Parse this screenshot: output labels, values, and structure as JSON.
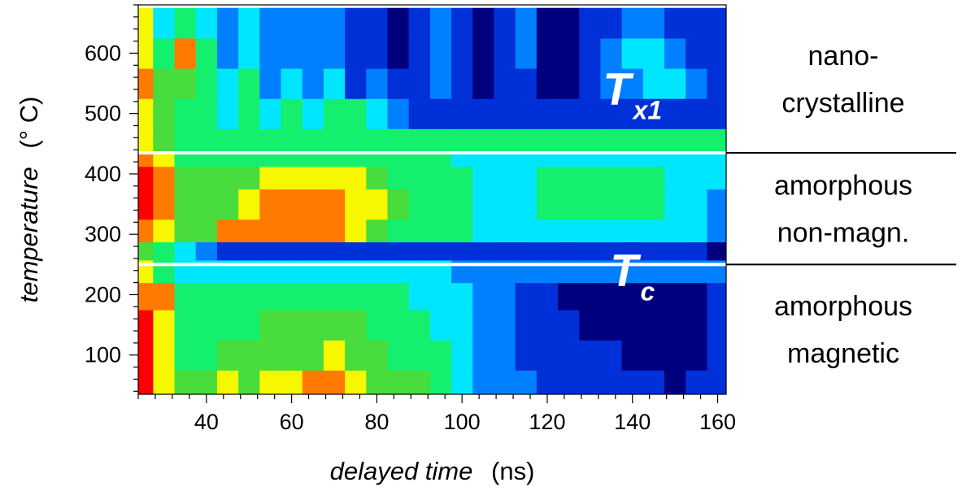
{
  "colors": {
    "background": "#ffffff",
    "phase_line": "#ffffff",
    "colormap": [
      "#00007f",
      "#0030d8",
      "#0080ff",
      "#00e6ff",
      "#14f06e",
      "#48dc3c",
      "#f7f700",
      "#ff7a00",
      "#ff0000"
    ]
  },
  "chart_data": {
    "type": "heatmap",
    "title": "",
    "xlabel": "delayed time",
    "xlabel_unit": "(ns)",
    "ylabel": "temperature",
    "ylabel_unit": "(° C)",
    "xlim": [
      24,
      162
    ],
    "ylim": [
      35,
      680
    ],
    "x_ticks": [
      40,
      60,
      80,
      100,
      120,
      140,
      160
    ],
    "y_ticks": [
      100,
      200,
      300,
      400,
      500,
      600
    ],
    "grid": false,
    "phase_boundaries": [
      {
        "name": "Tx1",
        "temperature": 435
      },
      {
        "name": "Tc",
        "temperature": 250
      }
    ],
    "annotations": [
      {
        "main": "T",
        "sub": "x1",
        "x": 140,
        "y": 515
      },
      {
        "main": "T",
        "sub": "c",
        "x": 140,
        "y": 215
      }
    ],
    "regions": [
      {
        "lines": [
          "nano-",
          "crystalline"
        ],
        "y_range": [
          435,
          680
        ]
      },
      {
        "lines": [
          "amorphous",
          "non-magn."
        ],
        "y_range": [
          250,
          435
        ]
      },
      {
        "lines": [
          "amorphous",
          "magnetic"
        ],
        "y_range": [
          35,
          250
        ]
      }
    ],
    "x": [
      25,
      30,
      35,
      40,
      45,
      50,
      55,
      60,
      65,
      70,
      75,
      80,
      85,
      90,
      95,
      100,
      105,
      110,
      115,
      120,
      125,
      130,
      135,
      140,
      145,
      150,
      155,
      160
    ],
    "y": [
      50,
      100,
      150,
      200,
      240,
      275,
      300,
      350,
      400,
      425,
      450,
      500,
      550,
      600,
      650
    ],
    "z": [
      [
        8,
        6,
        5,
        5,
        6,
        5,
        6,
        6,
        7,
        7,
        6,
        5,
        5,
        5,
        4,
        3,
        2,
        2,
        2,
        1,
        1,
        1,
        1,
        1,
        1,
        0,
        1,
        1
      ],
      [
        8,
        6,
        4,
        4,
        5,
        5,
        5,
        5,
        5,
        6,
        5,
        5,
        4,
        4,
        4,
        3,
        2,
        2,
        1,
        1,
        1,
        1,
        1,
        0,
        0,
        0,
        0,
        1
      ],
      [
        8,
        6,
        4,
        4,
        4,
        4,
        5,
        5,
        5,
        5,
        5,
        4,
        4,
        4,
        3,
        3,
        2,
        2,
        1,
        1,
        1,
        0,
        0,
        0,
        0,
        0,
        0,
        1
      ],
      [
        7,
        7,
        4,
        4,
        4,
        4,
        4,
        4,
        4,
        4,
        4,
        4,
        4,
        3,
        3,
        3,
        2,
        2,
        1,
        1,
        0,
        0,
        0,
        0,
        0,
        0,
        0,
        1
      ],
      [
        6,
        4,
        3,
        3,
        3,
        3,
        3,
        3,
        3,
        3,
        3,
        3,
        3,
        3,
        3,
        2,
        2,
        2,
        2,
        2,
        2,
        2,
        2,
        2,
        2,
        2,
        2,
        2
      ],
      [
        5,
        4,
        3,
        2,
        1,
        1,
        1,
        1,
        1,
        1,
        1,
        1,
        1,
        1,
        1,
        1,
        1,
        1,
        1,
        1,
        1,
        1,
        1,
        1,
        1,
        1,
        1,
        0
      ],
      [
        7,
        6,
        5,
        5,
        7,
        7,
        7,
        7,
        7,
        7,
        6,
        5,
        4,
        4,
        4,
        4,
        3,
        3,
        3,
        3,
        3,
        3,
        3,
        3,
        3,
        3,
        3,
        2
      ],
      [
        8,
        7,
        5,
        5,
        5,
        6,
        7,
        7,
        7,
        7,
        6,
        6,
        5,
        4,
        4,
        4,
        3,
        3,
        3,
        4,
        4,
        4,
        4,
        4,
        4,
        3,
        3,
        2
      ],
      [
        8,
        7,
        5,
        5,
        5,
        5,
        6,
        6,
        6,
        6,
        6,
        5,
        4,
        4,
        4,
        4,
        3,
        3,
        3,
        4,
        4,
        4,
        4,
        4,
        4,
        3,
        3,
        3
      ],
      [
        7,
        6,
        4,
        4,
        4,
        4,
        4,
        4,
        4,
        4,
        4,
        4,
        4,
        4,
        4,
        3,
        3,
        3,
        3,
        3,
        3,
        3,
        3,
        3,
        3,
        3,
        3,
        3
      ],
      [
        6,
        5,
        4,
        4,
        4,
        4,
        4,
        4,
        4,
        4,
        4,
        4,
        4,
        4,
        4,
        4,
        4,
        4,
        4,
        4,
        4,
        4,
        4,
        4,
        4,
        4,
        4,
        4
      ],
      [
        6,
        5,
        4,
        4,
        3,
        4,
        3,
        4,
        3,
        4,
        4,
        3,
        2,
        1,
        1,
        1,
        1,
        1,
        1,
        1,
        1,
        1,
        1,
        1,
        1,
        1,
        1,
        1
      ],
      [
        7,
        5,
        5,
        4,
        3,
        4,
        2,
        3,
        2,
        3,
        1,
        2,
        1,
        1,
        2,
        1,
        0,
        1,
        1,
        0,
        0,
        1,
        2,
        2,
        3,
        3,
        2,
        1
      ],
      [
        6,
        4,
        7,
        4,
        2,
        3,
        2,
        2,
        2,
        2,
        1,
        1,
        0,
        1,
        2,
        1,
        0,
        1,
        2,
        0,
        0,
        1,
        2,
        3,
        3,
        2,
        1,
        1
      ],
      [
        6,
        3,
        4,
        3,
        2,
        3,
        2,
        2,
        2,
        2,
        1,
        1,
        0,
        1,
        2,
        1,
        0,
        1,
        2,
        0,
        0,
        1,
        1,
        2,
        2,
        1,
        1,
        1
      ]
    ]
  }
}
